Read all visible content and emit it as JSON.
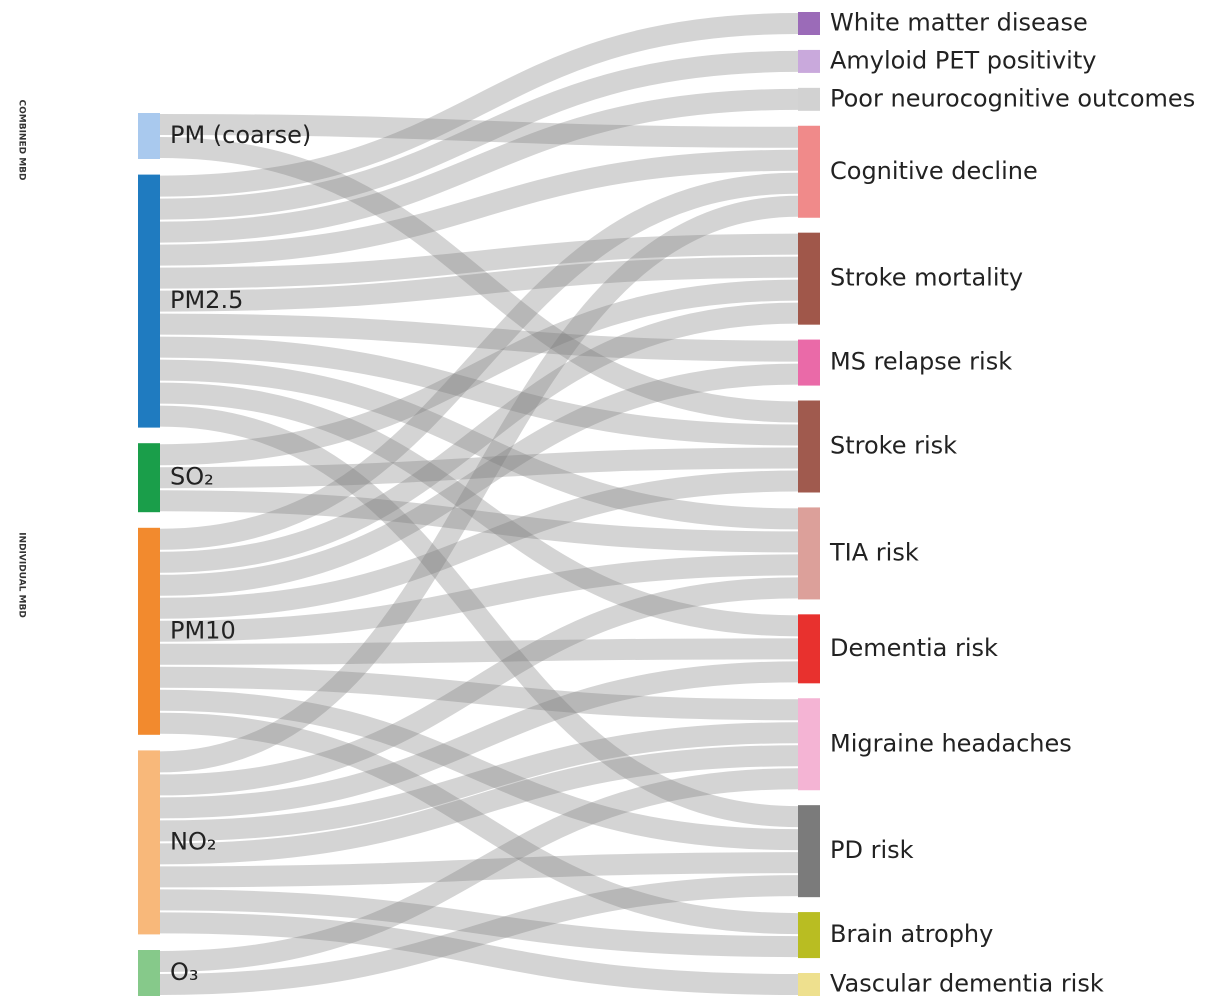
{
  "side_labels": [
    "COMBINED MBD",
    "INDIVIDUAL MBD"
  ],
  "sources": [
    {
      "label": "PM (coarse)",
      "color": "#a9c9ee"
    },
    {
      "label": "PM2.5",
      "color": "#1f7bc0"
    },
    {
      "label": "SO₂",
      "color": "#1a9e4a"
    },
    {
      "label": "PM10",
      "color": "#f28a2e"
    },
    {
      "label": "NO₂",
      "color": "#f8b87a"
    },
    {
      "label": "O₃",
      "color": "#86c98a"
    }
  ],
  "targets": [
    {
      "label": "White matter disease",
      "color": "#9b6bb8"
    },
    {
      "label": "Amyloid PET positivity",
      "color": "#c9a9dc"
    },
    {
      "label": "Poor neurocognitive outcomes",
      "color": "#d2d2d2"
    },
    {
      "label": "Cognitive decline",
      "color": "#f08a8a"
    },
    {
      "label": "Stroke mortality",
      "color": "#a0574a"
    },
    {
      "label": "MS relapse risk",
      "color": "#ea6aa8"
    },
    {
      "label": "Stroke risk",
      "color": "#a05a4e"
    },
    {
      "label": "TIA risk",
      "color": "#dca09a"
    },
    {
      "label": "Dementia risk",
      "color": "#e8312e"
    },
    {
      "label": "Migraine headaches",
      "color": "#f4b4d4"
    },
    {
      "label": "PD risk",
      "color": "#7b7b7b"
    },
    {
      "label": "Brain atrophy",
      "color": "#b9bd22"
    },
    {
      "label": "Vascular dementia risk",
      "color": "#eee08e"
    }
  ],
  "links": [
    [
      "PM (coarse)",
      "Cognitive decline"
    ],
    [
      "PM (coarse)",
      "Stroke risk"
    ],
    [
      "PM2.5",
      "White matter disease"
    ],
    [
      "PM2.5",
      "Amyloid PET positivity"
    ],
    [
      "PM2.5",
      "Poor neurocognitive outcomes"
    ],
    [
      "PM2.5",
      "Cognitive decline"
    ],
    [
      "PM2.5",
      "Stroke mortality"
    ],
    [
      "PM2.5",
      "Stroke mortality"
    ],
    [
      "PM2.5",
      "MS relapse risk"
    ],
    [
      "PM2.5",
      "Stroke risk"
    ],
    [
      "PM2.5",
      "TIA risk"
    ],
    [
      "PM2.5",
      "Dementia risk"
    ],
    [
      "PM2.5",
      "PD risk"
    ],
    [
      "SO₂",
      "Stroke mortality"
    ],
    [
      "SO₂",
      "Stroke risk"
    ],
    [
      "SO₂",
      "TIA risk"
    ],
    [
      "PM10",
      "Cognitive decline"
    ],
    [
      "PM10",
      "Stroke mortality"
    ],
    [
      "PM10",
      "MS relapse risk"
    ],
    [
      "PM10",
      "Stroke risk"
    ],
    [
      "PM10",
      "TIA risk"
    ],
    [
      "PM10",
      "Dementia risk"
    ],
    [
      "PM10",
      "Migraine headaches"
    ],
    [
      "PM10",
      "PD risk"
    ],
    [
      "PM10",
      "Brain atrophy"
    ],
    [
      "NO₂",
      "Cognitive decline"
    ],
    [
      "NO₂",
      "TIA risk"
    ],
    [
      "NO₂",
      "Dementia risk"
    ],
    [
      "NO₂",
      "Migraine headaches"
    ],
    [
      "NO₂",
      "Migraine headaches"
    ],
    [
      "NO₂",
      "PD risk"
    ],
    [
      "NO₂",
      "Brain atrophy"
    ],
    [
      "NO₂",
      "Vascular dementia risk"
    ],
    [
      "O₃",
      "Migraine headaches"
    ],
    [
      "O₃",
      "PD risk"
    ]
  ]
}
